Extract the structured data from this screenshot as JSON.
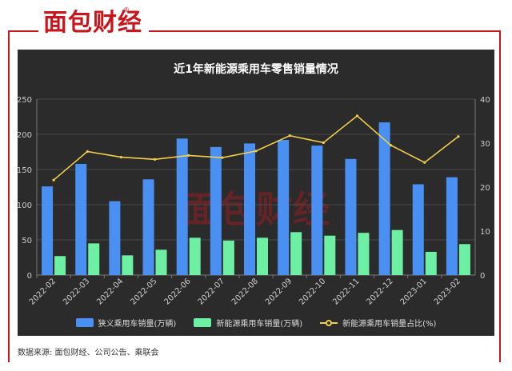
{
  "brand": {
    "logo_text": "面包财经",
    "reg_mark": "®",
    "watermark": "面包财经"
  },
  "source": "数据来源: 面包财经、公司公告、乘联会",
  "colors": {
    "bar1": "#4a90f2",
    "bar2": "#6ef0a4",
    "line": "#f2cf4a",
    "brand": "#c8161d"
  },
  "chart_data": {
    "type": "bar",
    "title": "近1年新能源乘用车零售销量情况",
    "categories": [
      "2022-02",
      "2022-03",
      "2022-04",
      "2022-05",
      "2022-06",
      "2022-07",
      "2022-08",
      "2022-09",
      "2022-10",
      "2022-11",
      "2022-12",
      "2023-01",
      "2023-02"
    ],
    "series": [
      {
        "name": "狭义乘用车销量(万辆)",
        "kind": "bar",
        "axis": "left",
        "values": [
          126,
          158,
          105,
          136,
          194,
          182,
          187,
          192,
          184,
          165,
          217,
          129,
          139
        ]
      },
      {
        "name": "新能源乘用车销量(万辆)",
        "kind": "bar",
        "axis": "left",
        "values": [
          27,
          45,
          28,
          36,
          53,
          49,
          53,
          61,
          56,
          60,
          64,
          33,
          44
        ]
      },
      {
        "name": "新能源乘用车销量占比(%)",
        "kind": "line",
        "axis": "right",
        "values": [
          21.6,
          28.1,
          26.8,
          26.3,
          27.2,
          26.7,
          28.2,
          31.7,
          30.1,
          36.2,
          29.5,
          25.6,
          31.5
        ]
      }
    ],
    "y_left": {
      "min": 0,
      "max": 250,
      "ticks": [
        "0",
        "50",
        "100",
        "150",
        "200",
        "250"
      ]
    },
    "y_right": {
      "min": 0,
      "max": 40,
      "ticks": [
        "0",
        "10",
        "20",
        "30",
        "40"
      ]
    },
    "grid": true,
    "legend_position": "bottom"
  }
}
